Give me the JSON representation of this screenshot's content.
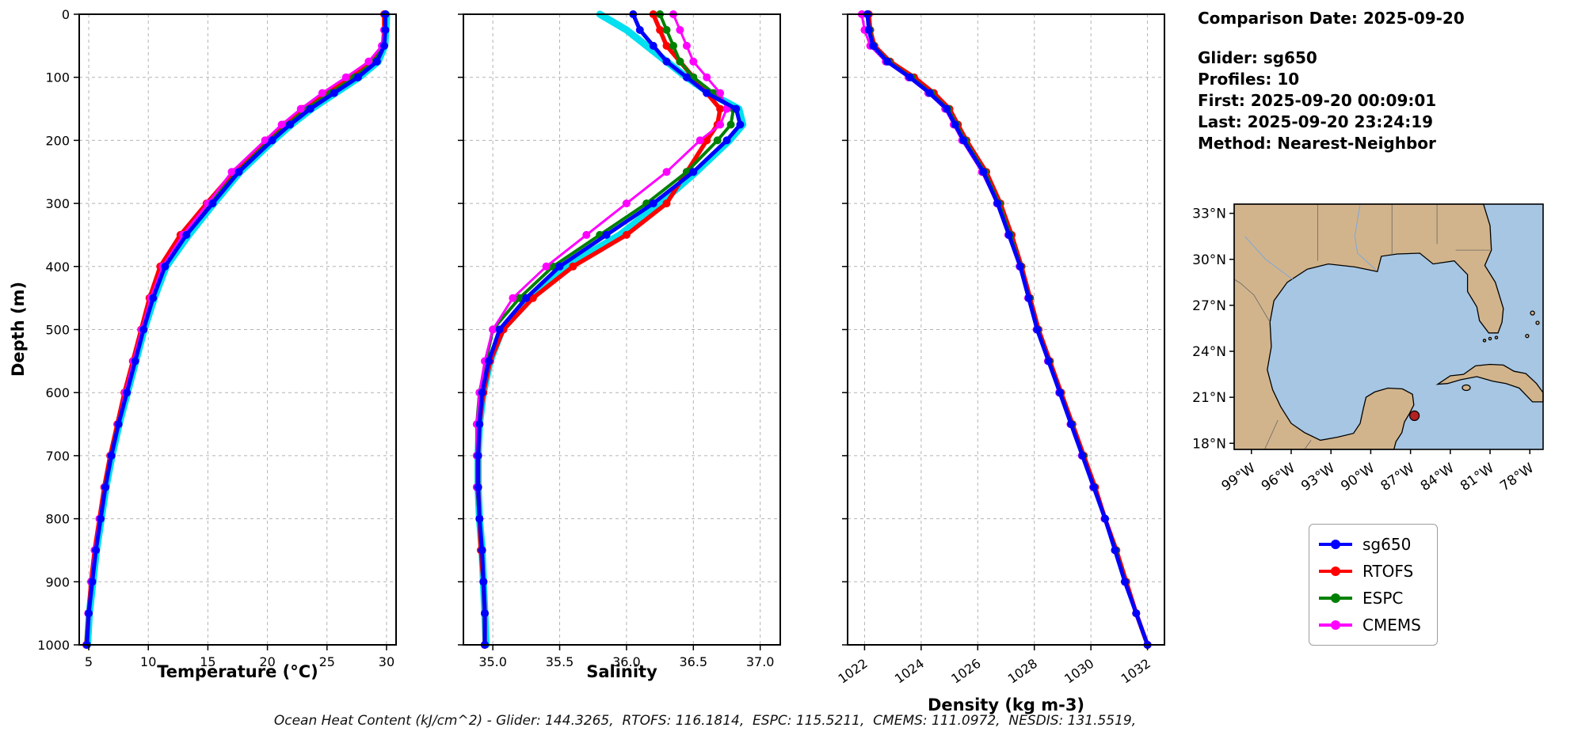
{
  "info_panel": {
    "comparison_date": "Comparison Date: 2025-09-20",
    "glider": "Glider: sg650",
    "profiles": "Profiles: 10",
    "first": "First: 2025-09-20 00:09:01",
    "last": "Last: 2025-09-20 23:24:19",
    "method": "Method: Nearest-Neighbor"
  },
  "footer": "Ocean Heat Content (kJ/cm^2) - Glider: 144.3265,  RTOFS: 116.1814,  ESPC: 115.5211,  CMEMS: 111.0972,  NESDIS: 131.5519,",
  "legend": {
    "position": "outside-right-below-map",
    "entries": [
      {
        "label": "sg650",
        "color": "#0000ff"
      },
      {
        "label": "RTOFS",
        "color": "#ff0000"
      },
      {
        "label": "ESPC",
        "color": "#008000"
      },
      {
        "label": "CMEMS",
        "color": "#ff00ff"
      }
    ]
  },
  "chart_data": [
    {
      "id": "temperature",
      "type": "line",
      "xlabel": "Temperature (°C)",
      "ylabel": "Depth (m)",
      "xlim": [
        4.2,
        30.8
      ],
      "xticks": [
        5,
        10,
        15,
        20,
        25,
        30
      ],
      "xtick_labels": [
        "5",
        "10",
        "15",
        "20",
        "25",
        "30"
      ],
      "ylim": [
        0,
        1000
      ],
      "yticks": [
        0,
        100,
        200,
        300,
        400,
        500,
        600,
        700,
        800,
        900,
        1000
      ],
      "ytick_labels": [
        "0",
        "100",
        "200",
        "300",
        "400",
        "500",
        "600",
        "700",
        "800",
        "900",
        "1000"
      ],
      "show_y_labels": true,
      "xtick_rotation": 0,
      "grid": true,
      "depths": [
        0,
        25,
        50,
        75,
        100,
        125,
        150,
        175,
        200,
        250,
        300,
        350,
        400,
        450,
        500,
        550,
        600,
        650,
        700,
        750,
        800,
        850,
        900,
        950,
        1000
      ],
      "series": [
        {
          "name": "sg650-raw",
          "color": "#00e0f0",
          "width": 9,
          "markers": false,
          "marker_size": 0,
          "values": [
            30.0,
            29.95,
            29.85,
            29.3,
            27.7,
            25.7,
            23.7,
            22.0,
            20.5,
            17.7,
            15.5,
            13.4,
            11.5,
            10.5,
            9.65,
            8.95,
            8.25,
            7.55,
            6.95,
            6.45,
            6.05,
            5.65,
            5.35,
            5.05,
            4.9
          ]
        },
        {
          "name": "RTOFS",
          "color": "#ff0000",
          "width": 5.5,
          "markers": true,
          "marker_size": 5,
          "values": [
            29.8,
            29.8,
            29.7,
            28.8,
            27.0,
            25.0,
            23.0,
            21.4,
            20.0,
            17.2,
            14.9,
            12.7,
            11.0,
            10.1,
            9.4,
            8.7,
            8.0,
            7.4,
            6.8,
            6.3,
            5.9,
            5.5,
            5.2,
            5.0,
            4.8
          ]
        },
        {
          "name": "ESPC",
          "color": "#008000",
          "width": 4,
          "markers": true,
          "marker_size": 5,
          "values": [
            29.9,
            29.85,
            29.75,
            29.0,
            27.3,
            25.3,
            23.3,
            21.7,
            20.2,
            17.5,
            15.2,
            13.0,
            11.3,
            10.3,
            9.5,
            8.8,
            8.1,
            7.5,
            6.9,
            6.4,
            5.95,
            5.55,
            5.25,
            5.0,
            4.8
          ]
        },
        {
          "name": "CMEMS",
          "color": "#ff00ff",
          "width": 3,
          "markers": true,
          "marker_size": 5,
          "values": [
            29.9,
            29.8,
            29.6,
            28.5,
            26.6,
            24.6,
            22.8,
            21.2,
            19.8,
            17.0,
            15.0,
            12.9,
            11.2,
            10.2,
            9.45,
            8.75,
            8.05,
            7.45,
            6.85,
            6.35,
            5.9,
            5.5,
            5.2,
            4.95,
            4.8
          ]
        },
        {
          "name": "sg650",
          "color": "#0000ff",
          "width": 5,
          "markers": true,
          "marker_size": 5,
          "values": [
            29.9,
            29.9,
            29.8,
            29.2,
            27.6,
            25.6,
            23.6,
            21.9,
            20.4,
            17.6,
            15.4,
            13.2,
            11.4,
            10.4,
            9.6,
            8.9,
            8.2,
            7.5,
            6.9,
            6.4,
            6.0,
            5.6,
            5.3,
            5.0,
            4.85
          ]
        }
      ]
    },
    {
      "id": "salinity",
      "type": "line",
      "xlabel": "Salinity",
      "xlim": [
        34.78,
        37.15
      ],
      "xticks": [
        35.0,
        35.5,
        36.0,
        36.5,
        37.0
      ],
      "xtick_labels": [
        "35.0",
        "35.5",
        "36.0",
        "36.5",
        "37.0"
      ],
      "ylim": [
        0,
        1000
      ],
      "yticks": [
        0,
        100,
        200,
        300,
        400,
        500,
        600,
        700,
        800,
        900,
        1000
      ],
      "show_y_labels": false,
      "xtick_rotation": 0,
      "grid": true,
      "depths": [
        0,
        25,
        50,
        75,
        100,
        125,
        150,
        175,
        200,
        250,
        300,
        350,
        400,
        450,
        500,
        550,
        600,
        650,
        700,
        750,
        800,
        850,
        900,
        950,
        1000
      ],
      "series": [
        {
          "name": "sg650-raw",
          "color": "#00e0f0",
          "width": 9,
          "markers": false,
          "marker_size": 0,
          "values": [
            35.8,
            36.0,
            36.15,
            36.3,
            36.45,
            36.62,
            36.84,
            36.87,
            36.77,
            36.52,
            36.25,
            35.95,
            35.55,
            35.28,
            35.07,
            34.98,
            34.93,
            34.9,
            34.89,
            34.89,
            34.9,
            34.92,
            34.93,
            34.94,
            34.95
          ]
        },
        {
          "name": "RTOFS",
          "color": "#ff0000",
          "width": 5.5,
          "markers": true,
          "marker_size": 5,
          "values": [
            36.2,
            36.25,
            36.3,
            36.4,
            36.5,
            36.6,
            36.7,
            36.68,
            36.6,
            36.45,
            36.3,
            36.0,
            35.6,
            35.3,
            35.08,
            34.98,
            34.93,
            34.9,
            34.89,
            34.89,
            34.9,
            34.91,
            34.93,
            34.94,
            34.94
          ]
        },
        {
          "name": "ESPC",
          "color": "#008000",
          "width": 4,
          "markers": true,
          "marker_size": 5,
          "values": [
            36.25,
            36.3,
            36.35,
            36.4,
            36.5,
            36.65,
            36.8,
            36.78,
            36.68,
            36.45,
            36.15,
            35.8,
            35.45,
            35.2,
            35.0,
            34.95,
            34.9,
            34.88,
            34.88,
            34.88,
            34.9,
            34.92,
            34.93,
            34.94,
            34.94
          ]
        },
        {
          "name": "CMEMS",
          "color": "#ff00ff",
          "width": 3,
          "markers": true,
          "marker_size": 5,
          "values": [
            36.35,
            36.4,
            36.45,
            36.5,
            36.6,
            36.7,
            36.75,
            36.7,
            36.55,
            36.3,
            36.0,
            35.7,
            35.4,
            35.15,
            35.0,
            34.94,
            34.9,
            34.88,
            34.88,
            34.88,
            34.9,
            34.92,
            34.93,
            34.94,
            34.94
          ]
        },
        {
          "name": "sg650",
          "color": "#0000ff",
          "width": 5,
          "markers": true,
          "marker_size": 5,
          "values": [
            36.05,
            36.1,
            36.2,
            36.3,
            36.45,
            36.6,
            36.82,
            36.85,
            36.75,
            36.5,
            36.2,
            35.85,
            35.5,
            35.25,
            35.05,
            34.97,
            34.92,
            34.9,
            34.89,
            34.89,
            34.9,
            34.92,
            34.93,
            34.94,
            34.94
          ]
        }
      ]
    },
    {
      "id": "density",
      "type": "line",
      "xlabel": "Density (kg m-3)",
      "xlim": [
        1021.4,
        1032.6
      ],
      "xticks": [
        1022,
        1024,
        1026,
        1028,
        1030,
        1032
      ],
      "xtick_labels": [
        "1022",
        "1024",
        "1026",
        "1028",
        "1030",
        "1032"
      ],
      "ylim": [
        0,
        1000
      ],
      "yticks": [
        0,
        100,
        200,
        300,
        400,
        500,
        600,
        700,
        800,
        900,
        1000
      ],
      "show_y_labels": false,
      "xtick_rotation": 35,
      "grid": true,
      "depths": [
        0,
        25,
        50,
        75,
        100,
        125,
        150,
        175,
        200,
        250,
        300,
        350,
        400,
        450,
        500,
        550,
        600,
        650,
        700,
        750,
        800,
        850,
        900,
        950,
        1000
      ],
      "series": [
        {
          "name": "RTOFS",
          "color": "#ff0000",
          "width": 5.5,
          "markers": true,
          "marker_size": 5,
          "values": [
            1022.15,
            1022.2,
            1022.35,
            1022.9,
            1023.75,
            1024.45,
            1025.0,
            1025.3,
            1025.6,
            1026.3,
            1026.8,
            1027.2,
            1027.55,
            1027.85,
            1028.15,
            1028.55,
            1028.95,
            1029.35,
            1029.75,
            1030.15,
            1030.5,
            1030.9,
            1031.25,
            1031.6,
            1032.0
          ]
        },
        {
          "name": "ESPC",
          "color": "#008000",
          "width": 4,
          "markers": true,
          "marker_size": 5,
          "values": [
            1022.1,
            1022.18,
            1022.32,
            1022.85,
            1023.65,
            1024.35,
            1024.95,
            1025.25,
            1025.55,
            1026.25,
            1026.75,
            1027.15,
            1027.52,
            1027.82,
            1028.12,
            1028.52,
            1028.92,
            1029.32,
            1029.72,
            1030.12,
            1030.5,
            1030.88,
            1031.22,
            1031.6,
            1032.0
          ]
        },
        {
          "name": "CMEMS",
          "color": "#ff00ff",
          "width": 3,
          "markers": true,
          "marker_size": 5,
          "values": [
            1021.9,
            1022.0,
            1022.2,
            1022.75,
            1023.55,
            1024.25,
            1024.85,
            1025.15,
            1025.45,
            1026.15,
            1026.68,
            1027.08,
            1027.48,
            1027.78,
            1028.08,
            1028.48,
            1028.88,
            1029.28,
            1029.68,
            1030.08,
            1030.48,
            1030.85,
            1031.2,
            1031.6,
            1032.0
          ]
        },
        {
          "name": "sg650",
          "color": "#0000ff",
          "width": 5,
          "markers": true,
          "marker_size": 5,
          "values": [
            1022.1,
            1022.15,
            1022.3,
            1022.8,
            1023.6,
            1024.3,
            1024.9,
            1025.2,
            1025.5,
            1026.2,
            1026.7,
            1027.1,
            1027.5,
            1027.8,
            1028.1,
            1028.5,
            1028.9,
            1029.3,
            1029.7,
            1030.1,
            1030.5,
            1030.85,
            1031.2,
            1031.6,
            1032.0
          ]
        }
      ]
    }
  ],
  "map": {
    "extent": {
      "lon_min": -100.3,
      "lon_max": -77.0,
      "lat_min": 17.6,
      "lat_max": 33.6
    },
    "lat_ticks": [
      {
        "label": "33°N",
        "value": 33
      },
      {
        "label": "30°N",
        "value": 30
      },
      {
        "label": "27°N",
        "value": 27
      },
      {
        "label": "24°N",
        "value": 24
      },
      {
        "label": "21°N",
        "value": 21
      },
      {
        "label": "18°N",
        "value": 18
      }
    ],
    "lon_ticks": [
      {
        "label": "99°W",
        "value": -99
      },
      {
        "label": "96°W",
        "value": -96
      },
      {
        "label": "93°W",
        "value": -93
      },
      {
        "label": "90°W",
        "value": -90
      },
      {
        "label": "87°W",
        "value": -87
      },
      {
        "label": "84°W",
        "value": -84
      },
      {
        "label": "81°W",
        "value": -81
      },
      {
        "label": "78°W",
        "value": -78
      }
    ],
    "marker": {
      "lon": -86.7,
      "lat": 19.8,
      "color": "#b22222"
    },
    "land_color": "#d2b48c",
    "water_color": "#a6c6e3",
    "coast_color": "#000000"
  }
}
